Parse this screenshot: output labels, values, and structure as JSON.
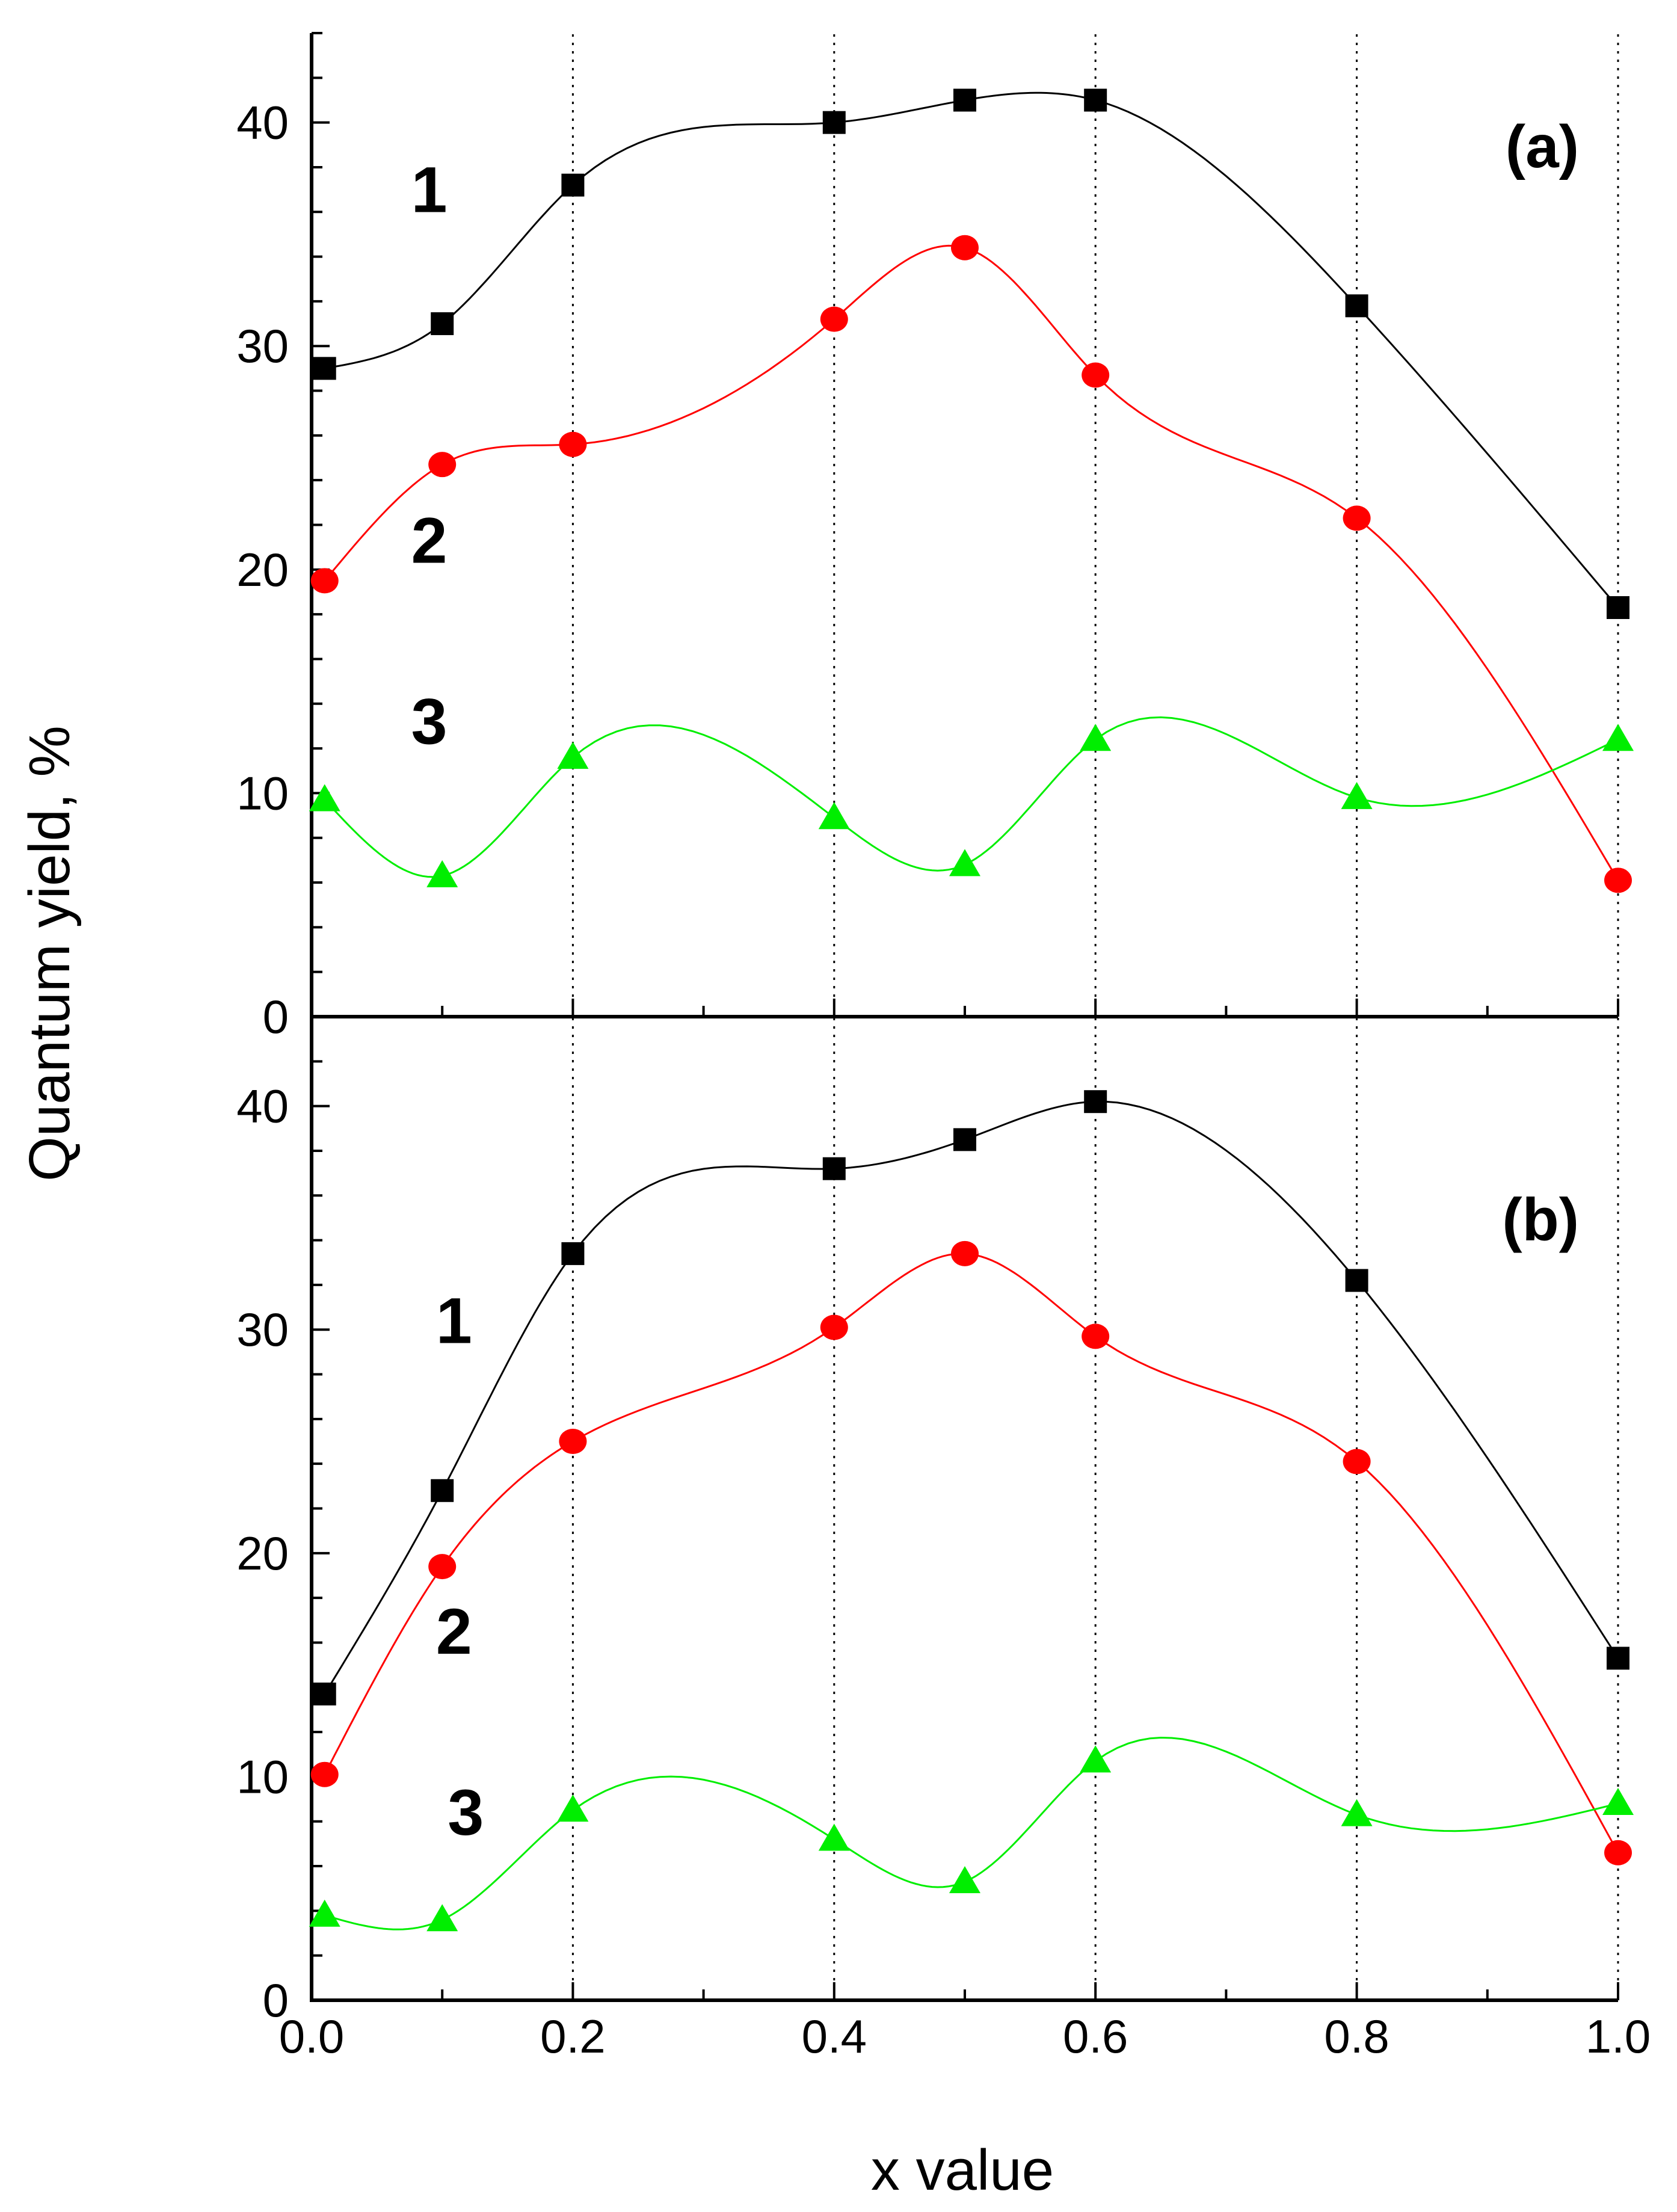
{
  "chart_data": {
    "type": "scatter",
    "xlabel": "x value",
    "ylabel": "Quantum yield, %",
    "xlim": [
      0.0,
      1.0
    ],
    "ylim": [
      0,
      44
    ],
    "x_ticks": [
      "0.0",
      "0.2",
      "0.4",
      "0.6",
      "0.8",
      "1.0"
    ],
    "y_ticks": [
      "0",
      "10",
      "20",
      "30",
      "40"
    ],
    "colors": {
      "1": "#000000",
      "2": "#ff0000",
      "3": "#00ee00"
    },
    "panels": [
      {
        "label": "(a)",
        "series": [
          {
            "name": "1",
            "marker": "square",
            "color": "#000000",
            "x": [
              0.01,
              0.1,
              0.2,
              0.4,
              0.5,
              0.6,
              0.8,
              1.0
            ],
            "values": [
              29,
              31,
              37.2,
              40,
              41,
              41,
              31.8,
              18.3
            ]
          },
          {
            "name": "2",
            "marker": "circle",
            "color": "#ff0000",
            "x": [
              0.01,
              0.1,
              0.2,
              0.4,
              0.5,
              0.6,
              0.8,
              1.0
            ],
            "values": [
              19.5,
              24.7,
              25.6,
              31.2,
              34.4,
              28.7,
              22.3,
              6.1
            ]
          },
          {
            "name": "3",
            "marker": "triangle",
            "color": "#00ee00",
            "x": [
              0.01,
              0.1,
              0.2,
              0.4,
              0.5,
              0.6,
              0.8,
              1.0
            ],
            "values": [
              9.7,
              6.3,
              11.6,
              8.9,
              6.8,
              12.4,
              9.8,
              12.4
            ]
          }
        ],
        "curve_labels": [
          {
            "text": "1",
            "x": 0.09,
            "y": 36.0
          },
          {
            "text": "2",
            "x": 0.09,
            "y": 20.3
          },
          {
            "text": "3",
            "x": 0.09,
            "y": 12.2
          }
        ]
      },
      {
        "label": "(b)",
        "series": [
          {
            "name": "1",
            "marker": "square",
            "color": "#000000",
            "x": [
              0.01,
              0.1,
              0.2,
              0.4,
              0.5,
              0.6,
              0.8,
              1.0
            ],
            "values": [
              13.7,
              22.8,
              33.4,
              37.2,
              38.5,
              40.2,
              32.2,
              15.3
            ]
          },
          {
            "name": "2",
            "marker": "circle",
            "color": "#ff0000",
            "x": [
              0.01,
              0.1,
              0.2,
              0.4,
              0.5,
              0.6,
              0.8,
              1.0
            ],
            "values": [
              10.1,
              19.4,
              25,
              30.1,
              33.4,
              29.7,
              24.1,
              6.6
            ]
          },
          {
            "name": "3",
            "marker": "triangle",
            "color": "#00ee00",
            "x": [
              0.01,
              0.1,
              0.2,
              0.4,
              0.5,
              0.6,
              0.8,
              1.0
            ],
            "values": [
              3.8,
              3.6,
              8.5,
              7.2,
              5.3,
              10.7,
              8.3,
              8.8
            ]
          }
        ],
        "curve_labels": [
          {
            "text": "1",
            "x": 0.109,
            "y": 29.4
          },
          {
            "text": "2",
            "x": 0.109,
            "y": 15.5
          },
          {
            "text": "3",
            "x": 0.118,
            "y": 7.4
          }
        ]
      }
    ]
  }
}
